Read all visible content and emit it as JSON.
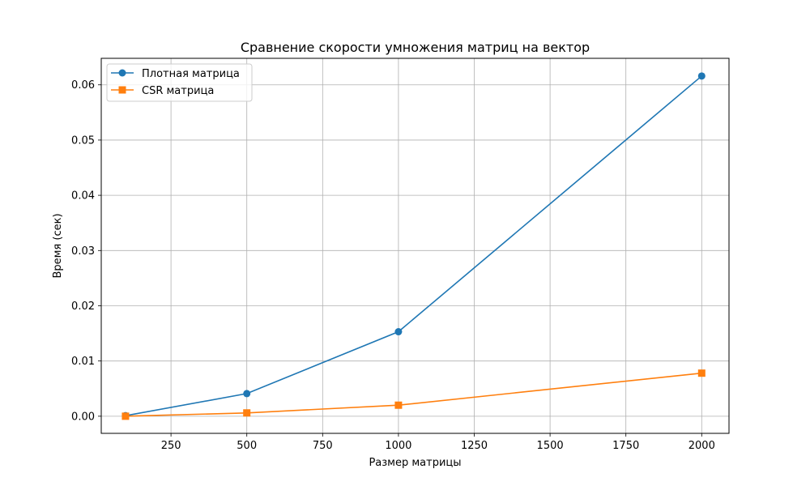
{
  "chart_data": {
    "type": "line",
    "title": "Сравнение скорости умножения матриц на вектор",
    "xlabel": "Размер матрицы",
    "ylabel": "Время (сек)",
    "xlim": [
      20,
      2090
    ],
    "ylim": [
      -0.0031,
      0.0648
    ],
    "xticks": [
      250,
      500,
      750,
      1000,
      1250,
      1500,
      1750,
      2000
    ],
    "yticks": [
      0.0,
      0.01,
      0.02,
      0.03,
      0.04,
      0.05,
      0.06
    ],
    "xtick_labels": [
      "250",
      "500",
      "750",
      "1000",
      "1250",
      "1500",
      "1750",
      "2000"
    ],
    "ytick_labels": [
      "0.00",
      "0.01",
      "0.02",
      "0.03",
      "0.04",
      "0.05",
      "0.06"
    ],
    "grid": true,
    "legend_position": "top-left",
    "series": [
      {
        "name": "Плотная матрица",
        "color": "#1f77b4",
        "marker": "circle",
        "x": [
          100,
          500,
          1000,
          2000
        ],
        "y": [
          0.0001,
          0.0041,
          0.0153,
          0.0616
        ]
      },
      {
        "name": "CSR матрица",
        "color": "#ff7f0e",
        "marker": "square",
        "x": [
          100,
          500,
          1000,
          2000
        ],
        "y": [
          0.0,
          0.0006,
          0.002,
          0.0078
        ]
      }
    ]
  }
}
